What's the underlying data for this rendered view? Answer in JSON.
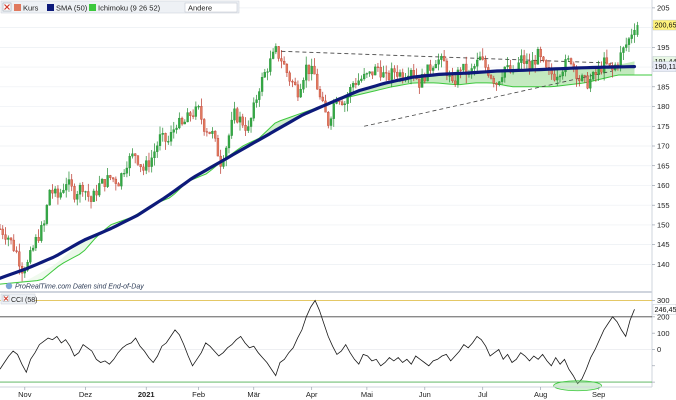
{
  "chart_data": [
    {
      "type": "candlestick",
      "legend": [
        {
          "label": "Kurs",
          "color": "#e07a5f"
        },
        {
          "label": "SMA (50)",
          "color": "#0d1a7a"
        },
        {
          "label": "Ichimoku (9 26 52)",
          "color": "#3cc83c"
        },
        {
          "label": "Andere",
          "color": "#ffffff"
        }
      ],
      "watermark": "ProRealTime.com  Daten sind End-of-Day",
      "ylim": [
        133,
        207
      ],
      "yticks": [
        140,
        145,
        150,
        155,
        160,
        165,
        170,
        175,
        180,
        185,
        190,
        195,
        200,
        205
      ],
      "ytick_labels": [
        "140",
        "145",
        "150",
        "155",
        "160",
        "165",
        "170",
        "175",
        "180",
        "185",
        "190",
        "195",
        "200",
        "205"
      ],
      "price_labels": [
        {
          "text": "200,65",
          "value": 200.65,
          "bg": "#fff27a"
        },
        {
          "text": "191,44",
          "value": 191.44,
          "bg": "#e8f7e4"
        },
        {
          "text": "190,11",
          "value": 190.11,
          "bg": "#e9ecf7"
        }
      ],
      "price_path": [
        [
          0,
          149
        ],
        [
          3,
          147
        ],
        [
          6,
          143
        ],
        [
          8,
          139
        ],
        [
          10,
          140
        ],
        [
          13,
          146
        ],
        [
          16,
          150
        ],
        [
          18,
          159
        ],
        [
          21,
          157
        ],
        [
          24,
          161
        ],
        [
          27,
          158
        ],
        [
          30,
          160
        ],
        [
          33,
          156
        ],
        [
          36,
          160
        ],
        [
          40,
          162
        ],
        [
          43,
          161
        ],
        [
          46,
          166
        ],
        [
          49,
          168
        ],
        [
          52,
          164
        ],
        [
          55,
          167
        ],
        [
          58,
          172
        ],
        [
          61,
          171
        ],
        [
          64,
          176
        ],
        [
          66,
          175
        ],
        [
          69,
          178
        ],
        [
          72,
          179
        ],
        [
          74,
          175
        ],
        [
          77,
          173
        ],
        [
          80,
          166
        ],
        [
          82,
          170
        ],
        [
          85,
          178
        ],
        [
          88,
          176
        ],
        [
          90,
          174
        ],
        [
          94,
          185
        ],
        [
          97,
          190
        ],
        [
          100,
          194
        ],
        [
          102,
          192
        ],
        [
          105,
          187
        ],
        [
          108,
          184
        ],
        [
          111,
          190
        ],
        [
          114,
          188
        ],
        [
          116,
          182
        ],
        [
          119,
          176
        ],
        [
          122,
          183
        ],
        [
          125,
          181
        ],
        [
          128,
          186
        ],
        [
          131,
          187
        ],
        [
          134,
          188
        ],
        [
          137,
          190
        ],
        [
          140,
          187
        ],
        [
          143,
          189
        ],
        [
          146,
          188
        ],
        [
          149,
          190
        ],
        [
          152,
          186
        ],
        [
          155,
          189
        ],
        [
          158,
          192
        ],
        [
          161,
          191
        ],
        [
          164,
          185
        ],
        [
          167,
          190
        ],
        [
          170,
          188
        ],
        [
          174,
          192
        ],
        [
          177,
          189
        ],
        [
          180,
          186
        ],
        [
          183,
          190
        ],
        [
          186,
          188
        ],
        [
          189,
          192
        ],
        [
          192,
          190
        ],
        [
          195,
          193
        ],
        [
          198,
          189
        ],
        [
          201,
          188
        ],
        [
          204,
          190
        ],
        [
          207,
          192
        ],
        [
          210,
          187
        ],
        [
          213,
          186
        ],
        [
          216,
          188
        ],
        [
          219,
          191
        ],
        [
          222,
          189
        ],
        [
          225,
          193
        ],
        [
          228,
          197
        ],
        [
          230,
          200.65
        ]
      ],
      "sma_50": [
        [
          0,
          136.5
        ],
        [
          10,
          139
        ],
        [
          20,
          142
        ],
        [
          30,
          146
        ],
        [
          40,
          149
        ],
        [
          50,
          152.5
        ],
        [
          60,
          157
        ],
        [
          70,
          162
        ],
        [
          80,
          166
        ],
        [
          90,
          170
        ],
        [
          100,
          174
        ],
        [
          110,
          178
        ],
        [
          120,
          181
        ],
        [
          130,
          184
        ],
        [
          140,
          186
        ],
        [
          150,
          187.5
        ],
        [
          160,
          188.2
        ],
        [
          170,
          188.5
        ],
        [
          180,
          189
        ],
        [
          190,
          189.2
        ],
        [
          200,
          189.5
        ],
        [
          210,
          189.8
        ],
        [
          220,
          190
        ],
        [
          230,
          190.11
        ]
      ],
      "ichimoku_lower": [
        [
          0,
          135
        ],
        [
          15,
          136
        ],
        [
          22,
          140
        ],
        [
          30,
          143
        ],
        [
          35,
          147
        ],
        [
          40,
          150
        ],
        [
          48,
          152
        ],
        [
          55,
          155
        ],
        [
          62,
          157
        ],
        [
          68,
          161
        ],
        [
          75,
          163
        ],
        [
          82,
          167
        ],
        [
          88,
          170
        ],
        [
          94,
          172
        ],
        [
          100,
          176
        ],
        [
          108,
          178
        ],
        [
          116,
          180
        ],
        [
          124,
          182
        ],
        [
          130,
          183
        ],
        [
          136,
          184
        ],
        [
          142,
          185
        ],
        [
          150,
          186
        ],
        [
          158,
          186
        ],
        [
          166,
          185.5
        ],
        [
          172,
          186
        ],
        [
          178,
          186
        ],
        [
          186,
          185
        ],
        [
          194,
          185
        ],
        [
          200,
          185
        ],
        [
          206,
          185.5
        ],
        [
          212,
          186
        ],
        [
          218,
          187
        ],
        [
          224,
          188
        ],
        [
          230,
          188
        ]
      ],
      "ichimoku_upper": [
        [
          0,
          135
        ],
        [
          10,
          136
        ],
        [
          20,
          140
        ],
        [
          30,
          146
        ],
        [
          40,
          149
        ],
        [
          50,
          152.5
        ],
        [
          60,
          157
        ],
        [
          70,
          162
        ],
        [
          80,
          166
        ],
        [
          90,
          170
        ],
        [
          100,
          174
        ],
        [
          110,
          178
        ],
        [
          120,
          181
        ],
        [
          130,
          184
        ],
        [
          140,
          186
        ],
        [
          150,
          187.5
        ],
        [
          160,
          188.2
        ],
        [
          170,
          188.5
        ],
        [
          180,
          189
        ],
        [
          190,
          189.2
        ],
        [
          200,
          189.5
        ],
        [
          210,
          189.8
        ],
        [
          220,
          190
        ],
        [
          230,
          191.44
        ]
      ],
      "trendlines": [
        {
          "from": [
            102,
            194
          ],
          "to": [
            222,
            191
          ]
        },
        {
          "from": [
            132,
            175
          ],
          "to": [
            222,
            189
          ]
        }
      ]
    },
    {
      "type": "line",
      "legend": [
        {
          "label": "CCI (58)",
          "color": "#222222"
        }
      ],
      "ylim": [
        -230,
        340
      ],
      "yticks": [
        -200,
        -100,
        0,
        100,
        200,
        300
      ],
      "ytick_labels": [
        "",
        "",
        "0",
        "100",
        "200",
        "300"
      ],
      "reference_lines": [
        300,
        200,
        -200
      ],
      "price_labels": [
        {
          "text": "246,45",
          "value": 246.45,
          "bg": "#ffffff"
        }
      ],
      "series": [
        {
          "values": [
            -120,
            -80,
            -40,
            -10,
            -30,
            -90,
            -140,
            -60,
            -20,
            30,
            50,
            70,
            60,
            80,
            40,
            60,
            20,
            -40,
            -20,
            30,
            10,
            -10,
            -60,
            -80,
            -70,
            -90,
            -60,
            -20,
            10,
            30,
            40,
            70,
            20,
            -10,
            -50,
            -80,
            -40,
            20,
            40,
            80,
            120,
            90,
            30,
            -40,
            -100,
            -60,
            -20,
            40,
            20,
            -10,
            -40,
            -20,
            10,
            30,
            60,
            80,
            40,
            10,
            20,
            -20,
            -50,
            -80,
            -120,
            -160,
            -80,
            -60,
            -20,
            10,
            70,
            120,
            200,
            260,
            300,
            240,
            160,
            80,
            20,
            -30,
            -10,
            30,
            -20,
            -60,
            -90,
            -30,
            -40,
            -70,
            -60,
            -100,
            -80,
            -50,
            -70,
            -50,
            -80,
            -60,
            -90,
            -40,
            -60,
            -80,
            -100,
            -70,
            -60,
            -40,
            -30,
            -70,
            -40,
            -10,
            30,
            10,
            40,
            80,
            60,
            20,
            -40,
            -20,
            0,
            -60,
            -30,
            -80,
            -60,
            -20,
            -40,
            -70,
            -40,
            -60,
            -30,
            -70,
            -100,
            -50,
            -90,
            -60,
            -120,
            -160,
            -210,
            -180,
            -120,
            -50,
            0,
            60,
            120,
            160,
            200,
            170,
            120,
            80,
            180,
            246.45
          ]
        }
      ]
    }
  ],
  "x_labels": [
    "Nov",
    "Dez",
    "2021",
    "Feb",
    "Mär",
    "Apr",
    "Mai",
    "Jun",
    "Jul",
    "Aug",
    "Sep"
  ],
  "x_label_positions": [
    9,
    31,
    53,
    72,
    92,
    113,
    133,
    154,
    175,
    196,
    217
  ]
}
